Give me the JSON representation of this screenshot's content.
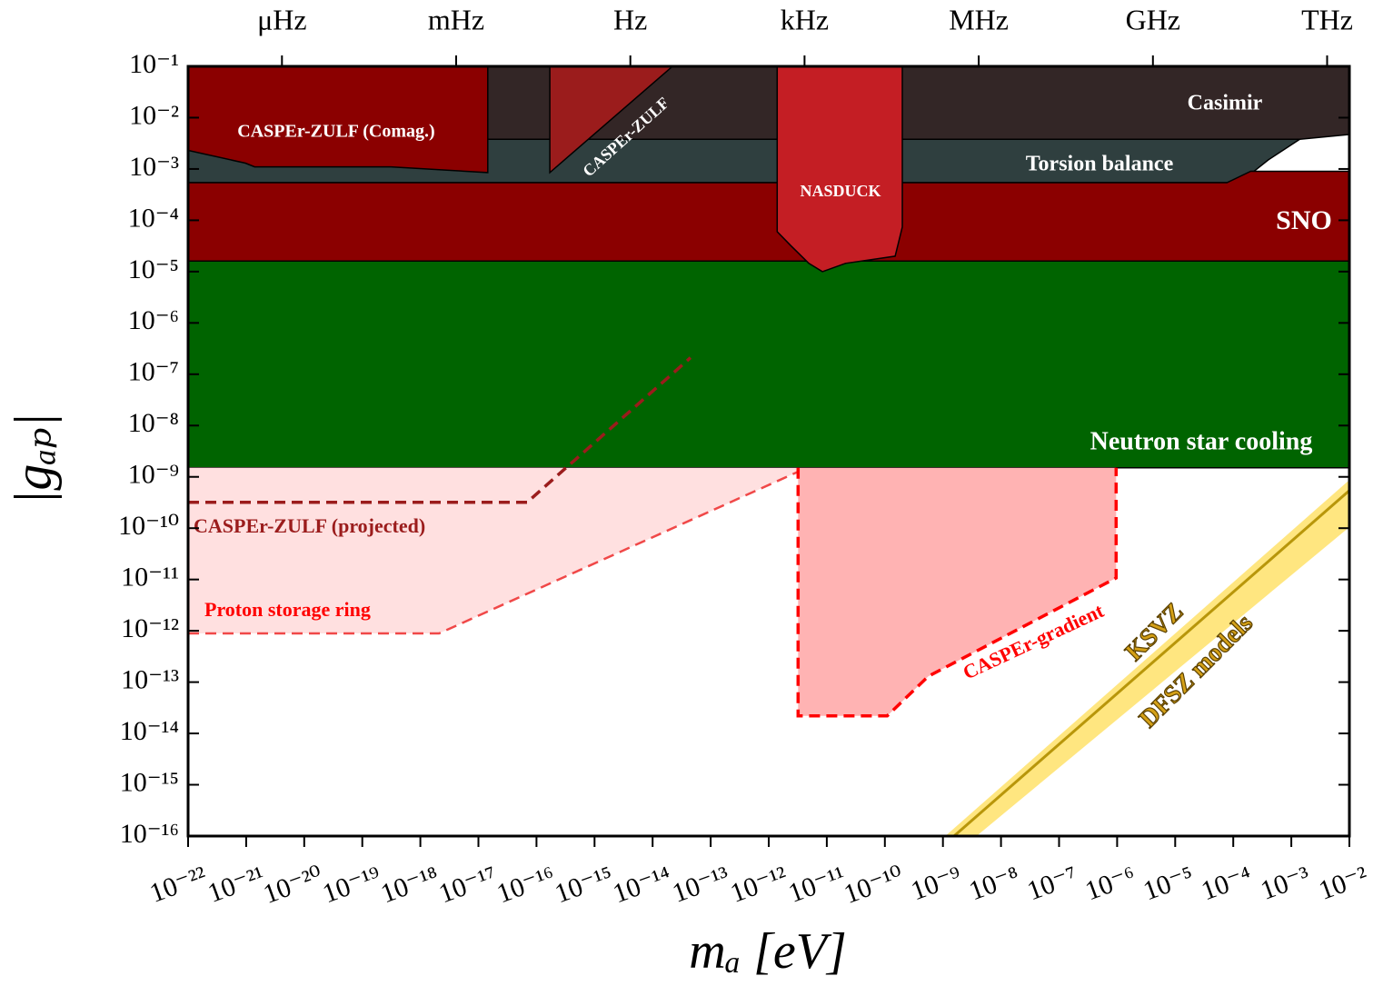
{
  "chart_data": {
    "type": "area",
    "xscale": "log",
    "yscale": "log",
    "xlabel": "mₐ [eV]",
    "ylabel": "|gₐₚ|",
    "xlim": [
      1e-22,
      0.01
    ],
    "ylim": [
      1e-16,
      0.1
    ],
    "xticks": [
      {
        "value": 1e-22,
        "label": "10⁻²²"
      },
      {
        "value": 1e-21,
        "label": "10⁻²¹"
      },
      {
        "value": 1e-20,
        "label": "10⁻²⁰"
      },
      {
        "value": 1e-19,
        "label": "10⁻¹⁹"
      },
      {
        "value": 1e-18,
        "label": "10⁻¹⁸"
      },
      {
        "value": 1e-17,
        "label": "10⁻¹⁷"
      },
      {
        "value": 1e-16,
        "label": "10⁻¹⁶"
      },
      {
        "value": 1e-15,
        "label": "10⁻¹⁵"
      },
      {
        "value": 1e-14,
        "label": "10⁻¹⁴"
      },
      {
        "value": 1e-13,
        "label": "10⁻¹³"
      },
      {
        "value": 1e-12,
        "label": "10⁻¹²"
      },
      {
        "value": 1e-11,
        "label": "10⁻¹¹"
      },
      {
        "value": 1e-10,
        "label": "10⁻¹⁰"
      },
      {
        "value": 1e-09,
        "label": "10⁻⁹"
      },
      {
        "value": 1e-08,
        "label": "10⁻⁸"
      },
      {
        "value": 1e-07,
        "label": "10⁻⁷"
      },
      {
        "value": 1e-06,
        "label": "10⁻⁶"
      },
      {
        "value": 1e-05,
        "label": "10⁻⁵"
      },
      {
        "value": 0.0001,
        "label": "10⁻⁴"
      },
      {
        "value": 0.001,
        "label": "10⁻³"
      },
      {
        "value": 0.01,
        "label": "10⁻²"
      }
    ],
    "yticks": [
      {
        "value": 1e-16,
        "label": "10⁻¹⁶"
      },
      {
        "value": 1e-15,
        "label": "10⁻¹⁵"
      },
      {
        "value": 1e-14,
        "label": "10⁻¹⁴"
      },
      {
        "value": 1e-13,
        "label": "10⁻¹³"
      },
      {
        "value": 1e-12,
        "label": "10⁻¹²"
      },
      {
        "value": 1e-11,
        "label": "10⁻¹¹"
      },
      {
        "value": 1e-10,
        "label": "10⁻¹⁰"
      },
      {
        "value": 1e-09,
        "label": "10⁻⁹"
      },
      {
        "value": 1e-08,
        "label": "10⁻⁸"
      },
      {
        "value": 1e-07,
        "label": "10⁻⁷"
      },
      {
        "value": 1e-06,
        "label": "10⁻⁶"
      },
      {
        "value": 1e-05,
        "label": "10⁻⁵"
      },
      {
        "value": 0.0001,
        "label": "10⁻⁴"
      },
      {
        "value": 0.001,
        "label": "10⁻³"
      },
      {
        "value": 0.01,
        "label": "10⁻²"
      },
      {
        "value": 0.1,
        "label": "10⁻¹"
      }
    ],
    "x2lim": [
      2.418e-08,
      2418000000000.0
    ],
    "x2ticks": [
      {
        "value": 1e-06,
        "label": "μHz"
      },
      {
        "value": 0.001,
        "label": "mHz"
      },
      {
        "value": 1,
        "label": "Hz"
      },
      {
        "value": 1000.0,
        "label": "kHz"
      },
      {
        "value": 1000000.0,
        "label": "MHz"
      },
      {
        "value": 1000000000.0,
        "label": "GHz"
      },
      {
        "value": 1000000000000.0,
        "label": "THz"
      }
    ],
    "series": [
      {
        "name": "Casimir",
        "kind": "fill",
        "color": "#332626",
        "outline": true,
        "x": [
          1e-22,
          0.01,
          0.01,
          0.0014,
          1e-22
        ],
        "y": [
          0.1,
          0.1,
          0.0047,
          0.0038,
          0.0038
        ]
      },
      {
        "name": "Torsion balance",
        "kind": "fill",
        "color": "#2f3f3f",
        "outline": true,
        "x": [
          1e-22,
          0.0014,
          0.0004,
          0.0002,
          7.8e-05,
          1e-22
        ],
        "y": [
          0.0038,
          0.0038,
          0.0015,
          0.0008,
          0.00054,
          0.00054
        ]
      },
      {
        "name": "SNO",
        "kind": "fill",
        "color": "#8b0000",
        "outline": true,
        "x": [
          1e-22,
          7.8e-05,
          0.0002,
          0.01,
          0.01,
          1e-22
        ],
        "y": [
          0.00054,
          0.00054,
          0.0009,
          0.0009,
          1.6e-05,
          1.6e-05
        ]
      },
      {
        "name": "Neutron star cooling",
        "kind": "fill",
        "color": "#006400",
        "outline": true,
        "x": [
          1e-22,
          0.01,
          0.01,
          1e-22
        ],
        "y": [
          1.6e-05,
          1.6e-05,
          1.5e-09,
          1.5e-09
        ]
      },
      {
        "name": "CASPEr-ZULF (Comag.)",
        "kind": "fill",
        "color": "#8b0000",
        "outline": true,
        "x": [
          1e-22,
          1.45e-17,
          1.45e-17,
          3.1e-19,
          1.4e-21,
          9.7e-22,
          1e-22
        ],
        "y": [
          0.1,
          0.1,
          0.00085,
          0.0011,
          0.0011,
          0.0013,
          0.0023
        ]
      },
      {
        "name": "CASPEr-ZULF",
        "kind": "fill",
        "color": "#9b1c1c",
        "outline": true,
        "x": [
          1.7e-16,
          2.2e-14,
          1.7e-16
        ],
        "y": [
          0.1,
          0.1,
          0.00085
        ]
      },
      {
        "name": "NASDUCK",
        "kind": "fill",
        "color": "#c41e24",
        "outline": true,
        "x": [
          1.4e-12,
          1.4e-12,
          2.4e-12,
          4.9e-12,
          8.4e-12,
          2.1e-11,
          1.5e-10,
          2e-10,
          2e-10
        ],
        "y": [
          0.1,
          6e-05,
          3.2e-05,
          1.45e-05,
          1e-05,
          1.45e-05,
          2e-05,
          7.4e-05,
          0.1
        ]
      },
      {
        "name": "CASPEr-ZULF (projected)",
        "kind": "fill",
        "color": "#dca5a5",
        "edge_color": "#9b1c1c",
        "x": [
          1e-22,
          3.2e-16,
          6.9e-17,
          1e-22
        ],
        "y": [
          1.5e-09,
          1.5e-09,
          3.2e-10,
          3.2e-10
        ],
        "edge_x": [
          1e-22,
          6.9e-17,
          4.5e-14
        ],
        "edge_y": [
          3.2e-10,
          3.2e-10,
          2.1e-07
        ]
      },
      {
        "name": "Proton storage ring",
        "kind": "fill",
        "color": "#ffe0e0",
        "edge_color": "#f04848",
        "x": [
          1e-22,
          3.2e-12,
          3.2e-12,
          2.1e-18,
          1e-22
        ],
        "y": [
          1.5e-09,
          1.5e-09,
          1.26e-09,
          8.9e-13,
          8.9e-13
        ],
        "edge_x": [
          1e-22,
          2.1e-18,
          3.2e-12
        ],
        "edge_y": [
          8.9e-13,
          8.9e-13,
          1.26e-09
        ]
      },
      {
        "name": "CASPEr-gradient",
        "kind": "fill",
        "color": "#ffb3b3",
        "edge_color": "#ff0000",
        "x": [
          3.2e-12,
          3.2e-12,
          1.1e-10,
          5.6e-10,
          9.6e-07,
          9.6e-07
        ],
        "y": [
          1.5e-09,
          2.2e-14,
          2.2e-14,
          1.3e-13,
          1.07e-11,
          1.5e-09
        ],
        "edge_x": [
          3.2e-12,
          3.2e-12,
          1.1e-10,
          5.6e-10,
          9.6e-07,
          9.6e-07
        ],
        "edge_y": [
          1.5e-09,
          2.2e-14,
          2.2e-14,
          1.3e-13,
          1.07e-11,
          1.5e-09
        ]
      },
      {
        "name": "DFSZ models",
        "kind": "fill",
        "color": "#ffe680",
        "x": [
          1.1e-09,
          0.01,
          0.01,
          3.8e-09
        ],
        "y": [
          1e-16,
          8.7e-10,
          1.05e-10,
          1e-16
        ]
      },
      {
        "name": "KSVZ",
        "kind": "line",
        "color": "#b8960a",
        "x": [
          1.55e-09,
          0.01
        ],
        "y": [
          1e-16,
          5.4e-10
        ]
      }
    ]
  }
}
